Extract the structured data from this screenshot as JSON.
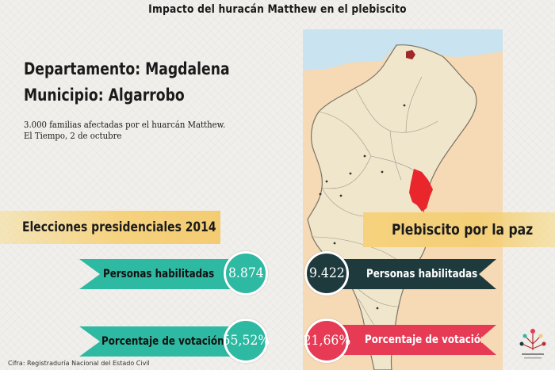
{
  "title": "Impacto del huracán Matthew en el plebiscito",
  "location": {
    "departamento": "Departamento: Magdalena",
    "municipio": "Municipio: Algarrobo"
  },
  "note": {
    "line1": "3.000 familias afectadas por el huarcán Matthew.",
    "line2": "El Tiempo, 2 de octubre"
  },
  "left_section": {
    "heading": "Elecciones presidenciales 2014",
    "personas_label": "Personas habilitadas",
    "personas_value": "8.874",
    "porcentaje_label": "Porcentaje de votación",
    "porcentaje_value": "55,52%"
  },
  "right_section": {
    "heading": "Plebiscito por la paz",
    "personas_label": "Personas habilitadas",
    "personas_value": "9.422",
    "porcentaje_label": "Porcentaje de votación",
    "porcentaje_value": "21,66%"
  },
  "source": "Cifra: Registraduría Nacional del Estado Civil",
  "colors": {
    "teal": "#2db9a2",
    "dark": "#1e3a3d",
    "red": "#e63a55",
    "yellow": "#f6d27e",
    "map_land": "#f0e6cc",
    "map_outside": "#f6d9b5",
    "map_sea": "#c9e3f0",
    "highlight": "#e8262b"
  },
  "icons": {
    "map": "magdalena-map",
    "logo": "organization-logo-icon"
  }
}
